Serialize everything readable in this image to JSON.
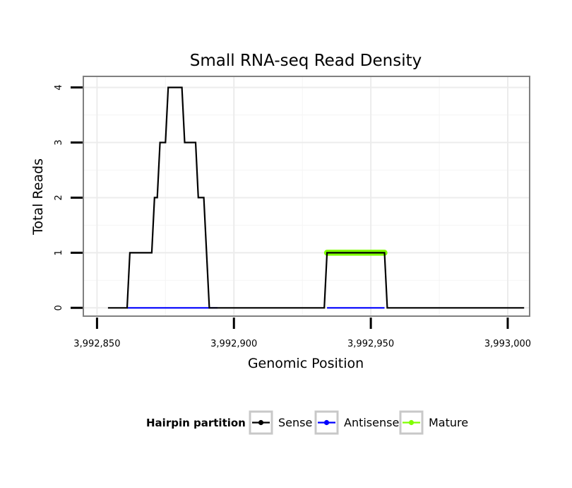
{
  "chart_data": {
    "type": "line",
    "title": "Small RNA-seq Read Density",
    "xlabel": "Genomic Position",
    "ylabel": "Total Reads",
    "xlim": [
      3992845,
      3993008
    ],
    "ylim": [
      -0.15,
      4.2
    ],
    "xticks": [
      3992850,
      3992900,
      3992950,
      3993000
    ],
    "xtick_labels": [
      "3,992,850",
      "3,992,900",
      "3,992,950",
      "3,993,000"
    ],
    "yticks": [
      0,
      1,
      2,
      3,
      4
    ],
    "ytick_labels": [
      "0",
      "1",
      "2",
      "3",
      "4"
    ],
    "grid": true,
    "legend": {
      "title": "Hairpin partition",
      "position": "bottom",
      "entries": [
        {
          "name": "Sense",
          "color": "#000000"
        },
        {
          "name": "Antisense",
          "color": "#0000ff"
        },
        {
          "name": "Mature",
          "color": "#7fff00"
        }
      ]
    },
    "series": [
      {
        "name": "Sense",
        "color": "#000000",
        "points": [
          [
            3992854,
            0
          ],
          [
            3992861,
            0
          ],
          [
            3992862,
            1
          ],
          [
            3992870,
            1
          ],
          [
            3992871,
            2
          ],
          [
            3992872,
            2
          ],
          [
            3992873,
            3
          ],
          [
            3992875,
            3
          ],
          [
            3992876,
            4
          ],
          [
            3992881,
            4
          ],
          [
            3992882,
            3
          ],
          [
            3992886,
            3
          ],
          [
            3992887,
            2
          ],
          [
            3992889,
            2
          ],
          [
            3992891,
            0
          ],
          [
            3992933,
            0
          ],
          [
            3992934,
            1
          ],
          [
            3992955,
            1
          ],
          [
            3992956,
            0
          ],
          [
            3993006,
            0
          ]
        ]
      },
      {
        "name": "Antisense",
        "color": "#0000ff",
        "points": [
          [
            3992861,
            0
          ],
          [
            3992894,
            0
          ],
          [
            3992934,
            0
          ],
          [
            3992955,
            0
          ]
        ]
      },
      {
        "name": "Mature",
        "color": "#7fff00",
        "x_start": 3992934,
        "x_end": 3992955,
        "value": 1
      }
    ]
  }
}
